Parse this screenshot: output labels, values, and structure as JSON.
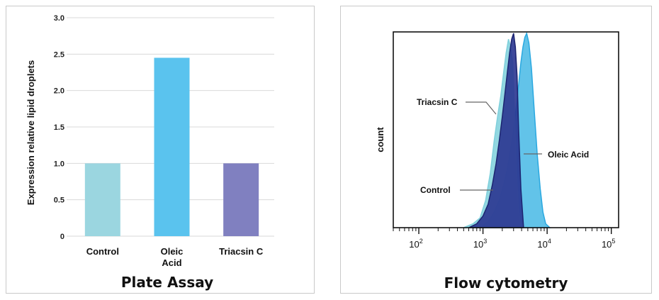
{
  "colors": {
    "control": "#9bd6e0",
    "oleic": "#5ac3ee",
    "triacsin": "#8080c0",
    "grid": "#d9d9d9",
    "flow_control": "#2a3590",
    "flow_triacsin": "#7fd0dc",
    "flow_oleic": "#5ac0e8",
    "flow_oleic_line": "#2aa8e0"
  },
  "chart_data": [
    {
      "type": "bar",
      "title": "Plate Assay",
      "ylabel": "Expression relative lipid droplets",
      "xlabel": "",
      "ylim": [
        0,
        3.0
      ],
      "yticks": [
        0,
        0.5,
        1.0,
        1.5,
        2.0,
        2.5,
        3.0
      ],
      "ytick_labels": [
        "0",
        "0.5",
        "1.0",
        "1.5",
        "2.0",
        "2.5",
        "3.0"
      ],
      "grid": true,
      "categories": [
        {
          "lines": [
            "Control"
          ],
          "value": 1.0,
          "color": "control"
        },
        {
          "lines": [
            "Oleic",
            "Acid"
          ],
          "value": 2.45,
          "color": "oleic"
        },
        {
          "lines": [
            "Triacsin C"
          ],
          "value": 1.0,
          "color": "triacsin"
        }
      ]
    },
    {
      "type": "area",
      "title": "Flow cytometry",
      "ylabel": "count",
      "xlabel": "",
      "x_scale": "log",
      "xlim": [
        100,
        100000
      ],
      "xticks": [
        {
          "base": "10",
          "exp": "2",
          "value": 100
        },
        {
          "base": "10",
          "exp": "3",
          "value": 1000
        },
        {
          "base": "10",
          "exp": "4",
          "value": 10000
        },
        {
          "base": "10",
          "exp": "5",
          "value": 100000
        }
      ],
      "ylim": [
        0,
        1.0
      ],
      "series": [
        {
          "name": "Triacsin C",
          "color": "flow_triacsin",
          "x": [
            500,
            700,
            900,
            1100,
            1300,
            1500,
            1700,
            1900,
            2100,
            2300,
            2500,
            2700,
            2900,
            3100,
            3300,
            3600,
            4000
          ],
          "y": [
            0,
            0.02,
            0.05,
            0.14,
            0.28,
            0.45,
            0.58,
            0.68,
            0.8,
            0.9,
            0.97,
            0.93,
            0.85,
            0.6,
            0.3,
            0.08,
            0
          ]
        },
        {
          "name": "Control",
          "color": "flow_control",
          "x": [
            600,
            800,
            1000,
            1200,
            1400,
            1600,
            1800,
            2000,
            2200,
            2400,
            2600,
            2800,
            3000,
            3200,
            3400,
            3600,
            3900,
            4300
          ],
          "y": [
            0,
            0.02,
            0.06,
            0.12,
            0.22,
            0.33,
            0.45,
            0.57,
            0.69,
            0.8,
            0.9,
            0.97,
            1.0,
            0.93,
            0.78,
            0.5,
            0.2,
            0
          ]
        },
        {
          "name": "Oleic Acid",
          "color": "flow_oleic",
          "x": [
            900,
            1200,
            1500,
            1800,
            2100,
            2400,
            2700,
            3000,
            3300,
            3600,
            3900,
            4200,
            4500,
            4800,
            5200,
            5700,
            6300,
            7000,
            7800,
            8600,
            9500,
            11000
          ],
          "y": [
            0,
            0.03,
            0.08,
            0.14,
            0.22,
            0.3,
            0.4,
            0.5,
            0.62,
            0.74,
            0.85,
            0.93,
            0.98,
            1.0,
            0.95,
            0.82,
            0.6,
            0.38,
            0.2,
            0.08,
            0.02,
            0
          ]
        }
      ],
      "annotations": [
        {
          "text": "Triacsin C"
        },
        {
          "text": "Control"
        },
        {
          "text": "Oleic Acid"
        }
      ]
    }
  ]
}
